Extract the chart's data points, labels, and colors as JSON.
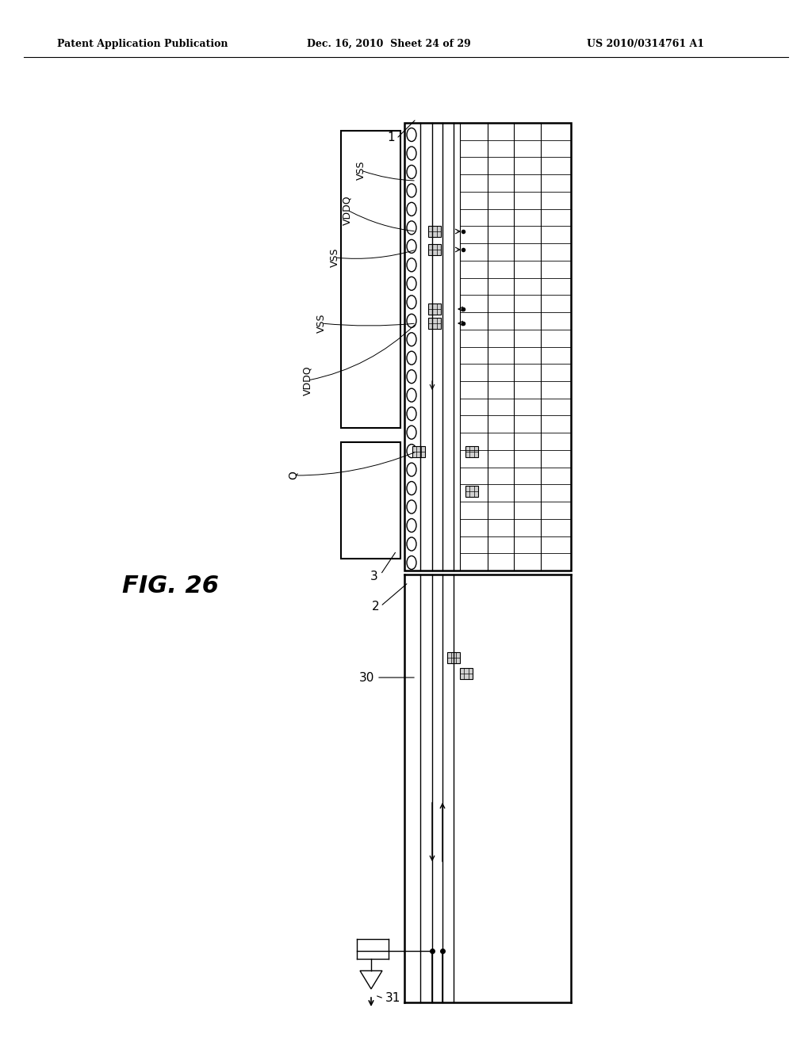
{
  "bg_color": "#ffffff",
  "header_left": "Patent Application Publication",
  "header_center": "Dec. 16, 2010  Sheet 24 of 29",
  "header_right": "US 2010/0314761 A1",
  "fig_label": "FIG. 26",
  "label_1": "1",
  "label_2": "2",
  "label_3": "3",
  "label_30": "30",
  "label_31": "31",
  "label_Q": "Q",
  "label_VDDQ1": "VDDQ",
  "label_VSS1": "VSS",
  "label_VSS2": "VSS",
  "label_VDDQ2": "VDDQ",
  "label_VSS3": "VSS"
}
